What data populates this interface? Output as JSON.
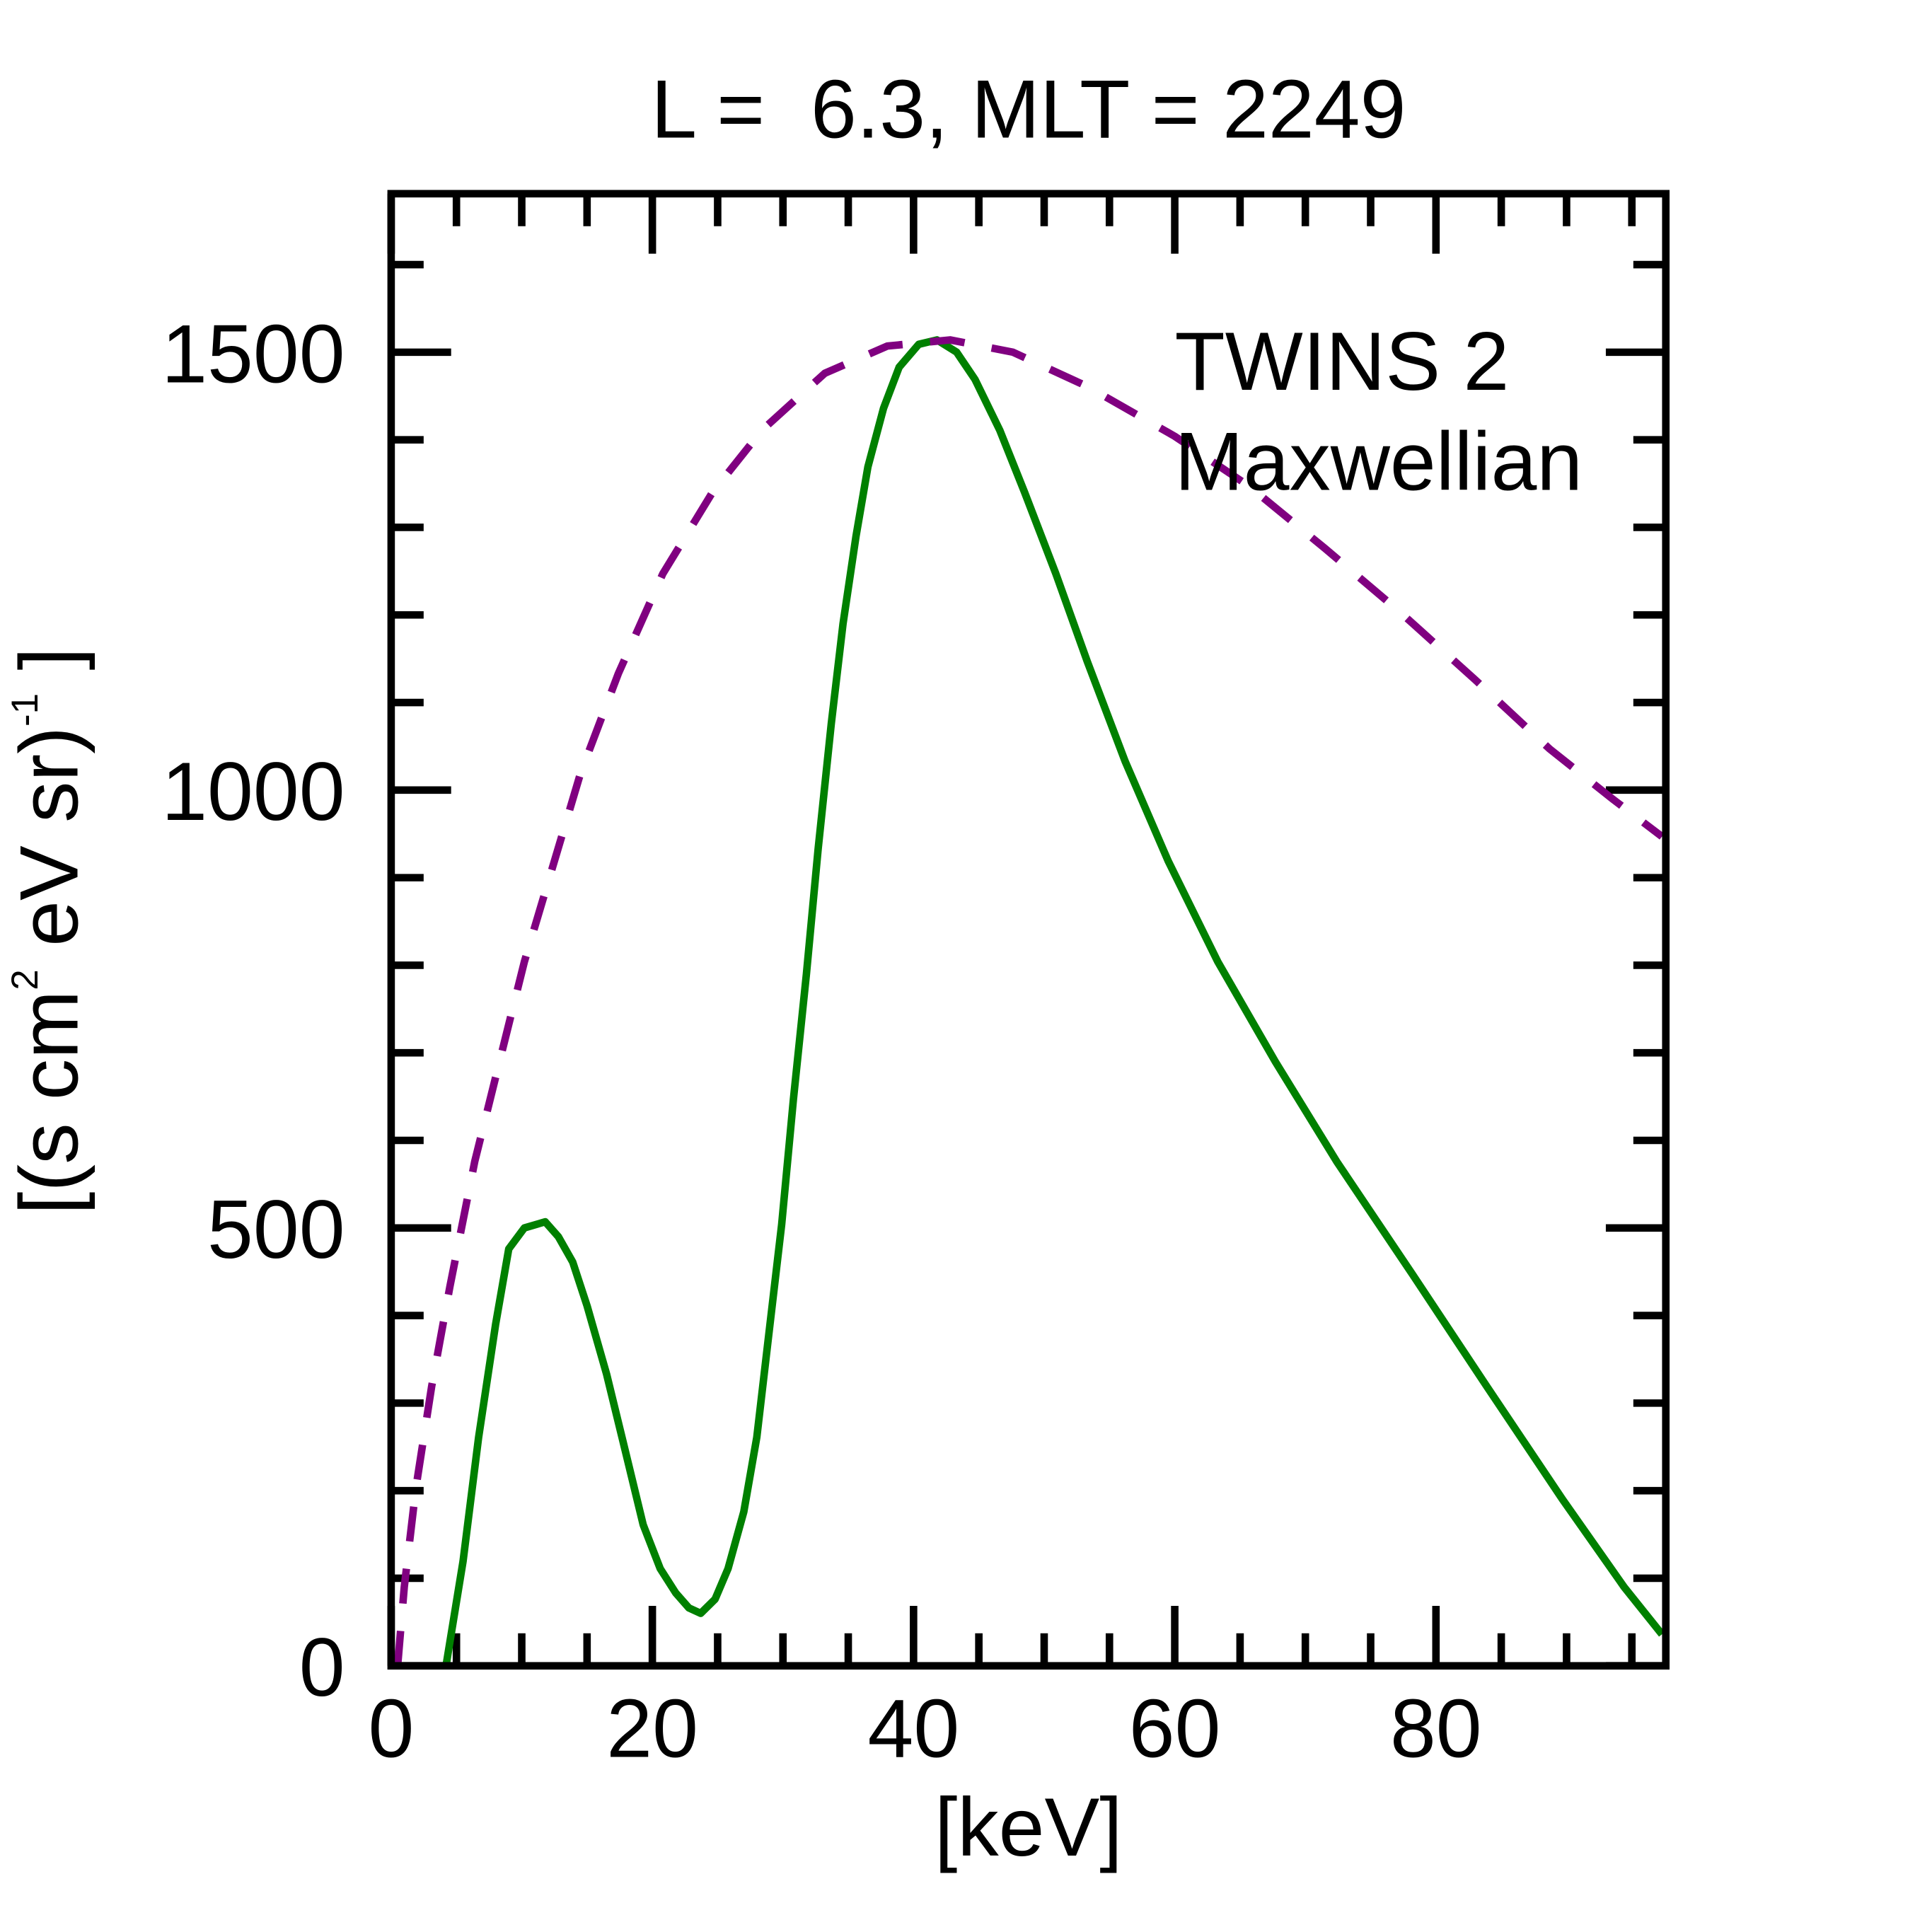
{
  "chart_data": {
    "type": "line",
    "title": "L =  6.3, MLT = 2249",
    "xlabel": "[keV]",
    "ylabel": "[(s cm² eV sr)⁻¹]",
    "ylabel_parts": {
      "a": "[(s cm",
      "sup1": "2",
      "b": " eV sr)",
      "sup2": "-1",
      "c": " ]"
    },
    "xlim": [
      0,
      97.6
    ],
    "ylim": [
      0,
      1681
    ],
    "xticks": [
      0,
      20,
      40,
      60,
      80
    ],
    "xtick_labels": [
      "0",
      "20",
      "40",
      "60",
      "80"
    ],
    "yticks": [
      0,
      500,
      1000,
      1500
    ],
    "ytick_labels": [
      "0",
      "500",
      "1000",
      "1500"
    ],
    "x_minor_step": 5,
    "y_minor_step": 100,
    "grid": false,
    "legend_placement": "top-right",
    "series": [
      {
        "name": "TWINS 2",
        "color": "#008000",
        "style": "solid",
        "x": [
          4.2,
          5.5,
          6.7,
          8.0,
          9.0,
          10.2,
          11.8,
          12.8,
          13.9,
          15.0,
          16.5,
          17.9,
          19.3,
          20.6,
          21.8,
          22.8,
          23.7,
          24.8,
          25.8,
          27.0,
          28.0,
          28.9,
          29.9,
          30.8,
          31.8,
          32.7,
          33.7,
          34.6,
          35.6,
          36.5,
          37.7,
          38.9,
          40.4,
          41.8,
          43.3,
          44.7,
          46.6,
          48.5,
          50.9,
          53.3,
          56.2,
          59.5,
          63.3,
          67.7,
          72.4,
          78.2,
          83.9,
          89.7,
          94.4,
          97.3
        ],
        "y": [
          0,
          119,
          261,
          390,
          476,
          500,
          507,
          490,
          461,
          411,
          333,
          247,
          161,
          111,
          83,
          66,
          60,
          76,
          111,
          176,
          261,
          376,
          504,
          647,
          790,
          933,
          1076,
          1190,
          1290,
          1369,
          1436,
          1483,
          1509,
          1514,
          1500,
          1469,
          1411,
          1340,
          1247,
          1147,
          1033,
          919,
          804,
          690,
          576,
          447,
          319,
          190,
          90,
          36
        ]
      },
      {
        "name": "Maxwellian",
        "color": "#800080",
        "style": "dashed",
        "x": [
          0.5,
          1.0,
          1.9,
          3.1,
          4.5,
          6.4,
          8.3,
          10.2,
          12.2,
          14.5,
          17.4,
          20.8,
          24.6,
          28.4,
          33.2,
          38.0,
          42.8,
          47.6,
          53.3,
          60.0,
          65.7,
          71.5,
          77.2,
          83.0,
          88.7,
          93.5,
          97.3
        ],
        "y": [
          0,
          90,
          204,
          319,
          433,
          576,
          690,
          804,
          904,
          1019,
          1133,
          1247,
          1340,
          1411,
          1476,
          1507,
          1514,
          1500,
          1461,
          1404,
          1347,
          1276,
          1204,
          1126,
          1047,
          990,
          947
        ]
      }
    ]
  }
}
